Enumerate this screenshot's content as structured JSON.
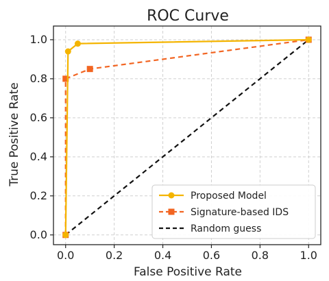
{
  "chart_data": {
    "type": "line",
    "title": "ROC Curve",
    "xlabel": "False Positive Rate",
    "ylabel": "True Positive Rate",
    "xlim": [
      -0.05,
      1.05
    ],
    "ylim": [
      -0.05,
      1.07
    ],
    "xticks": [
      0.0,
      0.2,
      0.4,
      0.6,
      0.8,
      1.0
    ],
    "yticks": [
      0.0,
      0.2,
      0.4,
      0.6,
      0.8,
      1.0
    ],
    "xtick_labels": [
      "0.0",
      "0.2",
      "0.4",
      "0.6",
      "0.8",
      "1.0"
    ],
    "ytick_labels": [
      "0.0",
      "0.2",
      "0.4",
      "0.6",
      "0.8",
      "1.0"
    ],
    "grid": true,
    "legend_position": "bottom-right",
    "series": [
      {
        "name": "Proposed Model",
        "color": "#f4b400",
        "line_style": "solid",
        "marker": "circle",
        "x": [
          0.0,
          0.01,
          0.05,
          1.0
        ],
        "y": [
          0.0,
          0.94,
          0.98,
          1.0
        ]
      },
      {
        "name": "Signature-based IDS",
        "color": "#f26522",
        "line_style": "dashed",
        "marker": "square",
        "x": [
          0.0,
          0.0,
          0.1,
          1.0
        ],
        "y": [
          0.0,
          0.8,
          0.85,
          1.0
        ]
      },
      {
        "name": "Random guess",
        "color": "#111111",
        "line_style": "dashed",
        "marker": "none",
        "x": [
          0.0,
          1.0
        ],
        "y": [
          0.0,
          1.0
        ]
      }
    ]
  }
}
